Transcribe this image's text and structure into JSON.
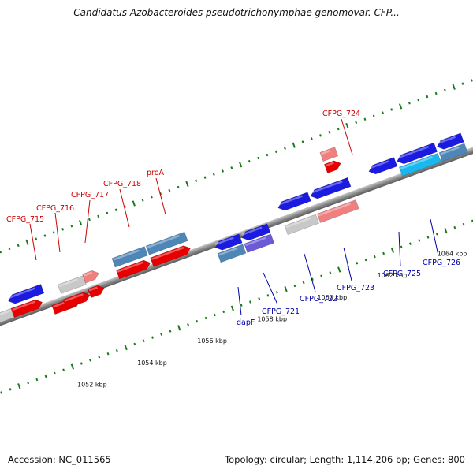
{
  "title": "Candidatus Azobacteroides pseudotrichonymphae genomovar. CFP...",
  "footer": {
    "accession": "Accession: NC_011565",
    "topology": "Topology: circular; Length: 1,114,206 bp; Genes: 800"
  },
  "axis": {
    "tick_labels": [
      "1052 kbp",
      "1054 kbp",
      "1056 kbp",
      "1058 kbp",
      "1060 kbp",
      "1062 kbp",
      "1064 kbp"
    ]
  },
  "colors": {
    "backbone": "#8a8a8a",
    "forward_gene": "#e80000",
    "forward_light": "#f08080",
    "reverse_gene": "#1a1ae0",
    "gray_gene": "#c8c8c8",
    "steel_gene": "#4f86b8",
    "purple_gene": "#6a5ad8",
    "cyan_gene": "#19b8ef",
    "tick": "#1a7a1a",
    "label_red": "#cc0000",
    "label_blue": "#0000aa"
  },
  "gene_labels_top": [
    "CFPG_715",
    "CFPG_716",
    "CFPG_717",
    "CFPG_718",
    "proA",
    "CFPG_724"
  ],
  "gene_labels_bottom": [
    "dapF",
    "CFPG_721",
    "CFPG_722",
    "CFPG_723",
    "CFPG_725",
    "CFPG_726"
  ]
}
